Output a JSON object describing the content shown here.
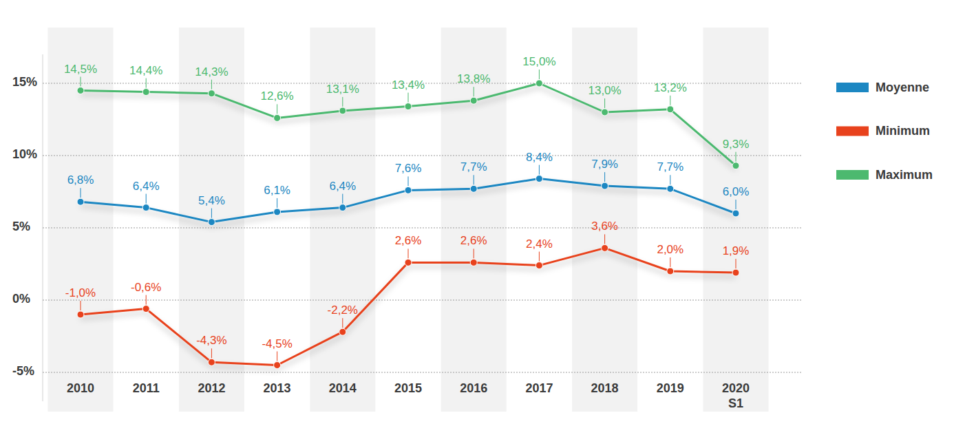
{
  "chart_data": {
    "type": "line",
    "categories": [
      "2010",
      "2011",
      "2012",
      "2013",
      "2014",
      "2015",
      "2016",
      "2017",
      "2018",
      "2019",
      "2020 S1"
    ],
    "series": [
      {
        "name": "Moyenne",
        "color": "#1c87c2",
        "values": [
          6.8,
          6.4,
          5.4,
          6.1,
          6.4,
          7.6,
          7.7,
          8.4,
          7.9,
          7.7,
          6.0
        ],
        "value_labels": [
          "6,8%",
          "6,4%",
          "5,4%",
          "6,1%",
          "6,4%",
          "7,6%",
          "7,7%",
          "8,4%",
          "7,9%",
          "7,7%",
          "6,0%"
        ]
      },
      {
        "name": "Minimum",
        "color": "#e8421d",
        "values": [
          -1.0,
          -0.6,
          -4.3,
          -4.5,
          -2.2,
          2.6,
          2.6,
          2.4,
          3.6,
          2.0,
          1.9
        ],
        "value_labels": [
          "-1,0%",
          "-0,6%",
          "-4,3%",
          "-4,5%",
          "-2,2%",
          "2,6%",
          "2,6%",
          "2,4%",
          "3,6%",
          "2,0%",
          "1,9%"
        ]
      },
      {
        "name": "Maximum",
        "color": "#4cb96f",
        "values": [
          14.5,
          14.4,
          14.3,
          12.6,
          13.1,
          13.4,
          13.8,
          15.0,
          13.0,
          13.2,
          9.3
        ],
        "value_labels": [
          "14,5%",
          "14,4%",
          "14,3%",
          "12,6%",
          "13,1%",
          "13,4%",
          "13,8%",
          "15,0%",
          "13,0%",
          "13,2%",
          "9,3%"
        ]
      }
    ],
    "ylim": [
      -7,
      17
    ],
    "yticks": [
      {
        "value": -5,
        "label": "-5%"
      },
      {
        "value": 0,
        "label": "0%"
      },
      {
        "value": 5,
        "label": "5%"
      },
      {
        "value": 10,
        "label": "10%"
      },
      {
        "value": 15,
        "label": "15%"
      }
    ],
    "grid": true,
    "legend": "right",
    "data_labels": true,
    "marker": "circle"
  }
}
